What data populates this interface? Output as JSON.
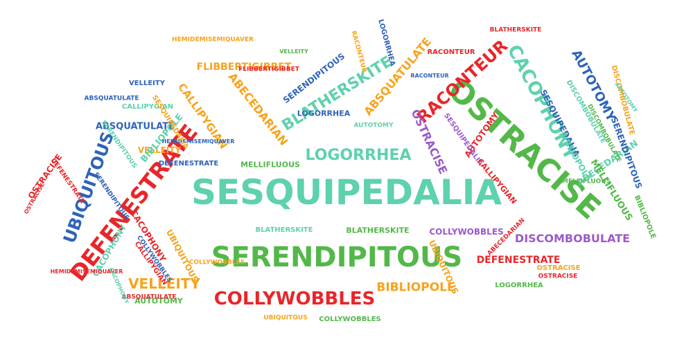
{
  "palette": {
    "red": "#e8262a",
    "green": "#53b849",
    "blue": "#2e63b9",
    "teal": "#5ed1ae",
    "orange": "#f7a31c",
    "purple": "#9b59c9"
  },
  "words": [
    {
      "text": "SESQUIPEDALIA",
      "color": "teal"
    },
    {
      "text": "SERENDIPITOUS",
      "color": "green"
    },
    {
      "text": "OSTRACISE",
      "color": "green"
    },
    {
      "text": "DEFENESTRATE",
      "color": "red"
    },
    {
      "text": "UBIQUITOUS",
      "color": "blue"
    },
    {
      "text": "COLLYWOBBLES",
      "color": "red"
    },
    {
      "text": "CACOPHONY",
      "color": "teal"
    },
    {
      "text": "RACONTEUR",
      "color": "red"
    },
    {
      "text": "BLATHERSKITE",
      "color": "teal"
    },
    {
      "text": "LOGORRHEA",
      "color": "teal"
    },
    {
      "text": "DISCOMBOBULATE",
      "color": "purple"
    },
    {
      "text": "AUTOTOMY",
      "color": "blue"
    },
    {
      "text": "ABSQUATULATE",
      "color": "orange"
    },
    {
      "text": "VELLEITY",
      "color": "orange"
    },
    {
      "text": "BIBLIOPOLE",
      "color": "orange"
    },
    {
      "text": "CALLIPYGIAN",
      "color": "orange"
    },
    {
      "text": "ABECEDARIAN",
      "color": "orange"
    },
    {
      "text": "FLIBBERTIGIBBET",
      "color": "orange"
    },
    {
      "text": "SERENDIPITOUS",
      "color": "blue"
    },
    {
      "text": "OSTRACISE",
      "color": "purple"
    },
    {
      "text": "SESQUIPEDALIA",
      "color": "blue"
    },
    {
      "text": "DEFENESTRATE",
      "color": "red"
    },
    {
      "text": "MELLIFLUOUS",
      "color": "green"
    },
    {
      "text": "BLATHERSKITE",
      "color": "green"
    },
    {
      "text": "BLATHERSKITE",
      "color": "teal"
    },
    {
      "text": "COLLYWOBBLES",
      "color": "purple"
    },
    {
      "text": "COLLYWOBBLES",
      "color": "green"
    },
    {
      "text": "ABSQUATULATE",
      "color": "blue"
    },
    {
      "text": "UBIQUITOUS",
      "color": "orange"
    },
    {
      "text": "CACOPHONY",
      "color": "red"
    },
    {
      "text": "CACOPHONY",
      "color": "teal"
    },
    {
      "text": "AUTOTOMY",
      "color": "green"
    },
    {
      "text": "OSTRACISE",
      "color": "red"
    },
    {
      "text": "VELLEITY",
      "color": "orange"
    },
    {
      "text": "BIBLIOPOLE",
      "color": "teal"
    },
    {
      "text": "CALLIPYGIAN",
      "color": "red"
    },
    {
      "text": "AUTOTOMY",
      "color": "red"
    },
    {
      "text": "ABECEDARIAN",
      "color": "teal"
    },
    {
      "text": "MELLIFLUOUS",
      "color": "green"
    },
    {
      "text": "SERENDIPITOUS",
      "color": "blue"
    },
    {
      "text": "BIBLIOPOLE",
      "color": "teal"
    },
    {
      "text": "LOGORRHEA",
      "color": "blue"
    },
    {
      "text": "LOGORRHEA",
      "color": "blue"
    },
    {
      "text": "LOGORRHEA",
      "color": "green"
    },
    {
      "text": "RACONTEUR",
      "color": "orange"
    },
    {
      "text": "RACONTEUR",
      "color": "red"
    },
    {
      "text": "RACONTEUR",
      "color": "blue"
    },
    {
      "text": "BLATHERSKITE",
      "color": "red"
    },
    {
      "text": "CALLIPYGIAN",
      "color": "teal"
    },
    {
      "text": "VELLEITY",
      "color": "blue"
    },
    {
      "text": "DISCOMBOBULATE",
      "color": "orange"
    },
    {
      "text": "DISCOMBOBULATE",
      "color": "teal"
    },
    {
      "text": "AUTOTOMY",
      "color": "teal"
    },
    {
      "text": "SESQUIPEDALIA",
      "color": "purple"
    },
    {
      "text": "HEMIDEMISEMIQUAVER",
      "color": "orange"
    },
    {
      "text": "HEMIDEMISEMIQUAVER",
      "color": "blue"
    },
    {
      "text": "HEMIDEMISEMIQUAVER",
      "color": "red"
    },
    {
      "text": "DEFENESTRATE",
      "color": "blue"
    },
    {
      "text": "ABSQUATULATE",
      "color": "red"
    },
    {
      "text": "COLLYWOBBLES",
      "color": "blue"
    },
    {
      "text": "UBIQUITOUS",
      "color": "orange"
    },
    {
      "text": "OSTRACISE",
      "color": "orange"
    },
    {
      "text": "OSTRACISE",
      "color": "red"
    },
    {
      "text": "ABECEDARIAN",
      "color": "red"
    },
    {
      "text": "CALLIPYGIAN",
      "color": "red"
    },
    {
      "text": "FLIBBERTIGIBBET",
      "color": "red"
    },
    {
      "text": "SERENDIPITOUS",
      "color": "teal"
    },
    {
      "text": "MELLIFLUOUS",
      "color": "green"
    },
    {
      "text": "ABSQUATULATE",
      "color": "blue"
    },
    {
      "text": "DEFENESTRATE",
      "color": "red"
    },
    {
      "text": "SERENDIPITOUS",
      "color": "blue"
    },
    {
      "text": "VELLEITY",
      "color": "green"
    },
    {
      "text": "CACOPHONY",
      "color": "teal"
    },
    {
      "text": "AUTOTOMY",
      "color": "teal"
    },
    {
      "text": "SESQUIPEDALIA",
      "color": "orange"
    },
    {
      "text": "UBIQUITOUS",
      "color": "orange"
    },
    {
      "text": "DISCOMBOBULATE",
      "color": "green"
    },
    {
      "text": "BIBLIOPOLE",
      "color": "green"
    },
    {
      "text": "OSTRACISE",
      "color": "red"
    },
    {
      "text": "COLLYWOBBLES",
      "color": "orange"
    }
  ]
}
